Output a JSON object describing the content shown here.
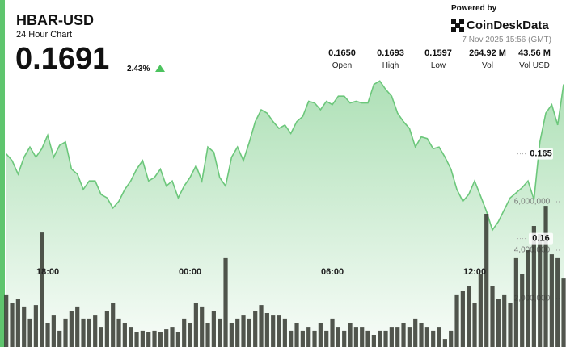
{
  "header": {
    "symbol": "HBAR-USD",
    "subtitle": "24 Hour Chart",
    "price": "0.1691",
    "change": "2.43%",
    "powered_by": "Powered by",
    "brand": "CoinDeskData",
    "timestamp": "7 Nov 2025 15:56 (GMT)"
  },
  "stats": [
    {
      "value": "0.1650",
      "label": "Open"
    },
    {
      "value": "0.1693",
      "label": "High"
    },
    {
      "value": "0.1597",
      "label": "Low"
    },
    {
      "value": "264.92 M",
      "label": "Vol"
    },
    {
      "value": "43.56 M",
      "label": "Vol USD"
    }
  ],
  "chart_data": {
    "type": "line",
    "categories": [
      null,
      null,
      null,
      null,
      null,
      null,
      null,
      "18:00",
      null,
      null,
      null,
      null,
      null,
      null,
      null,
      null,
      null,
      null,
      null,
      null,
      null,
      null,
      null,
      null,
      null,
      null,
      null,
      null,
      null,
      null,
      null,
      "00:00",
      null,
      null,
      null,
      null,
      null,
      null,
      null,
      null,
      null,
      null,
      null,
      null,
      null,
      null,
      null,
      null,
      null,
      null,
      null,
      null,
      null,
      null,
      null,
      "06:00",
      null,
      null,
      null,
      null,
      null,
      null,
      null,
      null,
      null,
      null,
      null,
      null,
      null,
      null,
      null,
      null,
      null,
      null,
      null,
      null,
      null,
      null,
      null,
      "12:00",
      null,
      null,
      null,
      null,
      null,
      null,
      null,
      null,
      null,
      null,
      null,
      null,
      null,
      null,
      null
    ],
    "series": [
      {
        "color": "#6cc77b",
        "values": [
          0.165,
          0.1646,
          0.1638,
          0.1648,
          0.1654,
          0.1648,
          0.1653,
          0.1661,
          0.1648,
          0.1655,
          0.1657,
          0.1641,
          0.1638,
          0.1629,
          0.1634,
          0.1634,
          0.1626,
          0.1624,
          0.1618,
          0.1622,
          0.1629,
          0.1634,
          0.1641,
          0.1646,
          0.1634,
          0.1636,
          0.1641,
          0.1631,
          0.1634,
          0.1624,
          0.1631,
          0.1636,
          0.1643,
          0.1634,
          0.1654,
          0.1651,
          0.1636,
          0.1631,
          0.1648,
          0.1654,
          0.1646,
          0.1657,
          0.1669,
          0.1676,
          0.1674,
          0.1669,
          0.1665,
          0.1667,
          0.1662,
          0.1669,
          0.1672,
          0.1681,
          0.168,
          0.1676,
          0.1681,
          0.1679,
          0.1684,
          0.1684,
          0.168,
          0.1681,
          0.168,
          0.168,
          0.1691,
          0.1693,
          0.1688,
          0.1684,
          0.1674,
          0.1669,
          0.1665,
          0.1654,
          0.166,
          0.1659,
          0.1653,
          0.1654,
          0.1648,
          0.1641,
          0.1629,
          0.1622,
          0.1626,
          0.1634,
          0.1625,
          0.1616,
          0.1605,
          0.161,
          0.1617,
          0.1624,
          0.1627,
          0.163,
          0.1634,
          0.1623,
          0.1657,
          0.1674,
          0.1679,
          0.1667,
          0.1691
        ]
      },
      {
        "type": "bar",
        "axis": "y2",
        "color": "#34372f",
        "values": [
          2170000,
          1830000,
          2000000,
          1670000,
          1170000,
          1730000,
          4730000,
          1000000,
          1330000,
          670000,
          1170000,
          1500000,
          1670000,
          1170000,
          1170000,
          1330000,
          830000,
          1500000,
          1830000,
          1170000,
          1000000,
          830000,
          600000,
          670000,
          600000,
          670000,
          600000,
          730000,
          830000,
          600000,
          1170000,
          1000000,
          1830000,
          1670000,
          1000000,
          1500000,
          1170000,
          3670000,
          1000000,
          1170000,
          1330000,
          1170000,
          1500000,
          1730000,
          1400000,
          1330000,
          1330000,
          1170000,
          670000,
          1000000,
          670000,
          830000,
          670000,
          1000000,
          670000,
          1170000,
          830000,
          670000,
          1000000,
          830000,
          830000,
          670000,
          500000,
          670000,
          670000,
          830000,
          830000,
          1000000,
          830000,
          1170000,
          1000000,
          830000,
          670000,
          830000,
          330000,
          670000,
          2170000,
          2330000,
          2500000,
          1830000,
          3000000,
          5500000,
          2500000,
          2000000,
          2170000,
          1830000,
          3670000,
          3000000,
          4000000,
          5000000,
          4670000,
          5830000,
          3830000,
          3670000,
          2830000
        ]
      }
    ],
    "ylim": [
      0.1536,
      0.1736
    ],
    "yticks": [
      0.16,
      0.165
    ],
    "y2lim": [
      0,
      14000000
    ],
    "y2ticks": [
      {
        "value": 2000000,
        "label": "2,000,000"
      },
      {
        "value": 4000000,
        "label": "4,000,000"
      },
      {
        "value": 6000000,
        "label": "6,000,000"
      }
    ]
  }
}
